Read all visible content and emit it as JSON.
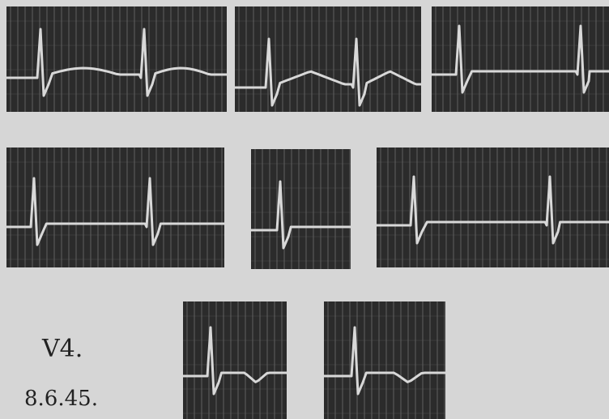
{
  "labels": {
    "lead": "V4.",
    "date": "8.6.45."
  }
}
